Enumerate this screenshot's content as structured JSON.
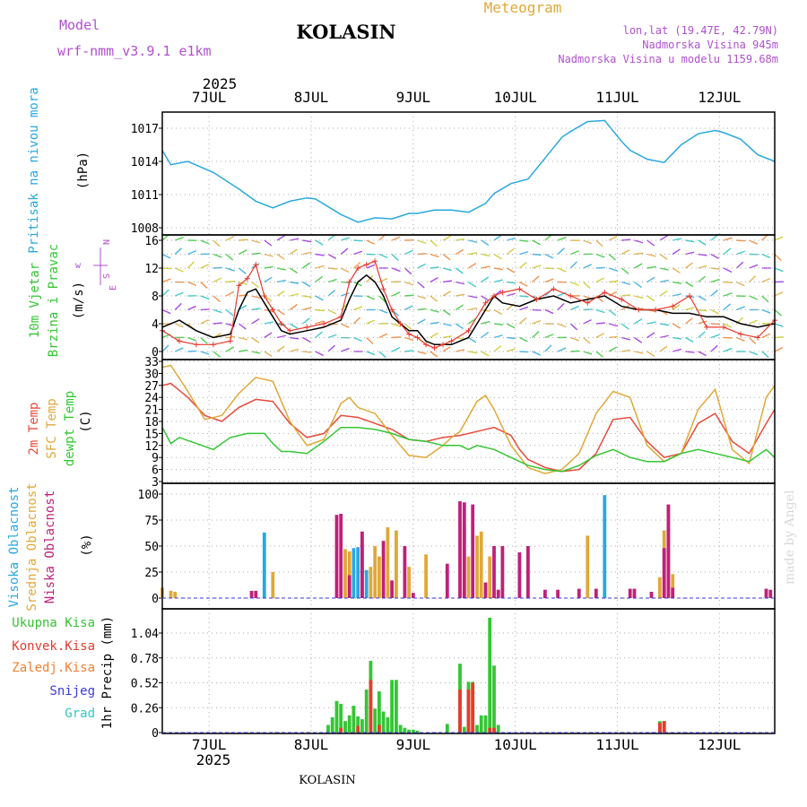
{
  "header": {
    "model_label": "Model",
    "model_name": "wrf-nmm_v3.9.1  e1km",
    "station": "KOLASIN",
    "title": "Meteogram",
    "coords": "lon,lat (19.47E, 42.79N)",
    "elev_station": "Nadmorska Visina 945m",
    "elev_model": "Nadmorska Visina u modelu 1159.68m",
    "year": "2025",
    "watermark": "made by Angel",
    "footer_station": "KOLASIN"
  },
  "colors": {
    "pressure": "#29a8e0",
    "wind_speed": "#000000",
    "wind_gust": "#e83a2e",
    "temp2m": "#e84a3a",
    "sfc_temp": "#e0a838",
    "dewpt": "#33c633",
    "cloud_high": "#29a8e0",
    "cloud_mid": "#e0a838",
    "cloud_low": "#c0207a",
    "precip_total": "#33c633",
    "precip_conv": "#e83a2e",
    "precip_frz": "#f08030",
    "precip_snow": "#3a3ae0",
    "precip_hail": "#33c6c6",
    "title": "#e0a838",
    "info": "#b050d0"
  },
  "chart_data": {
    "time_axis": {
      "start": "2025-07-06T13:00",
      "end": "2025-07-12T13:00",
      "step_hours": 1,
      "top_labels": [
        "7JUL",
        "8JUL",
        "9JUL",
        "10JUL",
        "11JUL",
        "12JUL"
      ],
      "bottom_labels": [
        "7JUL",
        "8JUL",
        "9JUL",
        "10JUL",
        "11JUL",
        "12JUL"
      ],
      "year": "2025"
    },
    "panels": [
      {
        "id": "pressure",
        "type": "line",
        "ylabel": "Pritisak na nivou mora",
        "unit": "(hPa)",
        "ylim": [
          1008,
          1018
        ],
        "yticks": [
          1008,
          1011,
          1014,
          1017
        ],
        "series": [
          {
            "key": "pressure",
            "color_key": "pressure",
            "x_hours": [
              0,
              2,
              6,
              12,
              18,
              22,
              26,
              30,
              34,
              36,
              42,
              46,
              50,
              54,
              58,
              60,
              64,
              68,
              72,
              76,
              78,
              82,
              86,
              90,
              94,
              96,
              100,
              104,
              108,
              110,
              114,
              118,
              122,
              126,
              130,
              132,
              136,
              140,
              144
            ],
            "values": [
              1015.0,
              1013.7,
              1014.0,
              1013.0,
              1011.5,
              1010.4,
              1009.8,
              1010.4,
              1010.7,
              1010.6,
              1009.2,
              1008.5,
              1008.9,
              1008.8,
              1009.3,
              1009.3,
              1009.6,
              1009.6,
              1009.4,
              1010.2,
              1011.1,
              1012.0,
              1012.4,
              1014.3,
              1016.2,
              1016.7,
              1017.6,
              1017.7,
              1015.8,
              1015.0,
              1014.2,
              1013.9,
              1015.5,
              1016.5,
              1016.8,
              1016.6,
              1016.0,
              1014.6,
              1014.0
            ]
          }
        ]
      },
      {
        "id": "wind",
        "type": "line",
        "ylabel_top": "10m Vjetar",
        "ylabel_bottom": "Brzina i Pravac",
        "unit": "(m/s)",
        "compass_labels": [
          "w",
          "N",
          "S",
          "E"
        ],
        "ylim": [
          0,
          17
        ],
        "yticks": [
          0,
          4,
          8,
          12,
          16
        ],
        "extra_yticks": [
          2,
          6,
          10,
          14
        ],
        "series": [
          {
            "key": "speed",
            "color_key": "wind_speed",
            "x_hours": [
              0,
              4,
              8,
              12,
              16,
              18,
              20,
              22,
              24,
              26,
              28,
              30,
              34,
              38,
              42,
              44,
              46,
              48,
              50,
              52,
              54,
              56,
              58,
              60,
              62,
              64,
              66,
              68,
              72,
              76,
              78,
              80,
              84,
              88,
              92,
              96,
              100,
              104,
              108,
              112,
              116,
              120,
              124,
              128,
              132,
              136,
              140,
              144
            ],
            "values": [
              3.5,
              4.5,
              3.0,
              2.0,
              2.5,
              6.0,
              8.5,
              9.0,
              7.0,
              5.0,
              3.0,
              2.5,
              3.0,
              3.5,
              4.5,
              7.5,
              10.0,
              11.0,
              10.0,
              8.0,
              5.0,
              4.0,
              3.0,
              3.0,
              1.5,
              1.0,
              1.0,
              1.0,
              2.0,
              6.0,
              8.0,
              7.0,
              6.5,
              7.5,
              8.0,
              7.0,
              7.5,
              8.0,
              6.5,
              6.0,
              6.0,
              5.5,
              5.5,
              5.0,
              5.0,
              4.0,
              3.5,
              4.0
            ]
          },
          {
            "key": "gust",
            "color_key": "wind_gust",
            "x_hours": [
              0,
              4,
              8,
              12,
              16,
              18,
              20,
              22,
              24,
              26,
              28,
              30,
              34,
              38,
              42,
              44,
              46,
              48,
              50,
              52,
              54,
              56,
              58,
              60,
              62,
              64,
              66,
              68,
              72,
              76,
              78,
              80,
              84,
              88,
              92,
              96,
              100,
              104,
              108,
              112,
              116,
              120,
              124,
              128,
              132,
              136,
              140,
              144
            ],
            "values": [
              3.0,
              1.5,
              1.0,
              1.0,
              1.5,
              9.5,
              10.5,
              12.5,
              8.0,
              6.0,
              4.0,
              3.0,
              3.5,
              4.0,
              5.0,
              10.0,
              12.0,
              12.5,
              13.0,
              9.0,
              6.0,
              4.0,
              2.5,
              2.0,
              1.0,
              0.5,
              1.0,
              1.5,
              3.0,
              7.0,
              8.0,
              8.5,
              9.0,
              7.5,
              9.0,
              8.0,
              7.0,
              8.5,
              7.5,
              6.0,
              6.0,
              6.5,
              8.0,
              3.5,
              3.5,
              2.5,
              2.0,
              4.5
            ]
          }
        ]
      },
      {
        "id": "temperature",
        "type": "line",
        "ylabels": [
          "2m Temp",
          "SFC Temp",
          "dewpt Temp"
        ],
        "unit": "(C)",
        "ylim": [
          3,
          33
        ],
        "yticks": [
          3,
          6,
          9,
          12,
          15,
          18,
          21,
          24,
          27,
          30,
          33
        ],
        "series": [
          {
            "key": "temp2m",
            "color_key": "temp2m",
            "x_hours": [
              0,
              2,
              6,
              10,
              14,
              18,
              22,
              26,
              30,
              34,
              38,
              42,
              46,
              50,
              54,
              58,
              62,
              66,
              70,
              74,
              78,
              82,
              84,
              86,
              90,
              94,
              98,
              102,
              106,
              110,
              114,
              118,
              122,
              126,
              130,
              134,
              138,
              142,
              144
            ],
            "values": [
              27.0,
              27.5,
              24.0,
              19.5,
              18.0,
              21.5,
              23.5,
              23.0,
              17.5,
              14.0,
              15.0,
              19.5,
              19.0,
              17.5,
              16.0,
              13.5,
              13.0,
              14.0,
              14.5,
              15.5,
              16.5,
              14.5,
              11.0,
              8.5,
              6.5,
              5.5,
              6.0,
              10.0,
              18.5,
              19.0,
              13.0,
              9.0,
              10.0,
              17.5,
              20.0,
              13.0,
              10.0,
              17.5,
              21.0
            ]
          },
          {
            "key": "sfc",
            "color_key": "sfc_temp",
            "x_hours": [
              0,
              2,
              6,
              10,
              14,
              18,
              22,
              26,
              30,
              34,
              38,
              42,
              44,
              46,
              50,
              54,
              58,
              62,
              66,
              68,
              70,
              74,
              76,
              78,
              82,
              86,
              90,
              94,
              98,
              102,
              106,
              110,
              114,
              118,
              122,
              126,
              130,
              134,
              138,
              142,
              144
            ],
            "values": [
              31.5,
              32.0,
              25.5,
              18.5,
              19.5,
              25.0,
              29.0,
              28.0,
              18.0,
              12.0,
              13.5,
              22.5,
              24.0,
              21.5,
              20.0,
              14.5,
              9.5,
              9.0,
              12.0,
              14.0,
              15.5,
              23.0,
              24.5,
              21.0,
              12.0,
              6.5,
              5.0,
              6.0,
              10.0,
              20.0,
              25.5,
              24.0,
              12.0,
              8.0,
              10.0,
              21.0,
              26.0,
              11.0,
              7.5,
              24.0,
              27.0
            ]
          },
          {
            "key": "dewpt",
            "color_key": "dewpt",
            "x_hours": [
              0,
              2,
              4,
              8,
              12,
              16,
              20,
              24,
              26,
              28,
              30,
              34,
              38,
              42,
              46,
              50,
              54,
              58,
              62,
              66,
              70,
              72,
              74,
              78,
              82,
              86,
              90,
              94,
              98,
              102,
              106,
              110,
              114,
              118,
              122,
              126,
              130,
              134,
              138,
              142,
              144
            ],
            "values": [
              16.5,
              12.5,
              14.0,
              12.5,
              11.0,
              14.0,
              15.0,
              15.0,
              12.5,
              10.5,
              10.5,
              10.0,
              13.0,
              16.5,
              16.5,
              16.0,
              15.0,
              13.5,
              13.0,
              12.0,
              12.0,
              11.0,
              12.0,
              11.0,
              9.0,
              7.0,
              6.0,
              5.5,
              7.0,
              9.5,
              11.0,
              9.0,
              8.0,
              8.0,
              10.0,
              11.0,
              10.0,
              9.0,
              8.0,
              11.0,
              9.0
            ]
          }
        ]
      },
      {
        "id": "clouds",
        "type": "bar",
        "ylabels": [
          "Visoka Oblacnost",
          "Srednja Oblacnost",
          "Niska Oblacnost"
        ],
        "unit": "(%)",
        "ylim": [
          0,
          100
        ],
        "yticks": [
          0,
          25,
          50,
          75,
          100
        ],
        "series": [
          {
            "key": "high",
            "color_key": "cloud_high",
            "x_hours": [
              24,
              45,
              46,
              47,
              48,
              104
            ],
            "values": [
              63,
              48,
              49,
              48,
              27,
              99
            ]
          },
          {
            "key": "mid",
            "color_key": "cloud_mid",
            "x_hours": [
              0,
              2,
              3,
              26,
              43,
              44,
              49,
              50,
              51,
              53,
              55,
              58,
              62,
              71,
              72,
              74,
              75,
              77,
              100,
              117,
              118,
              119,
              120
            ],
            "values": [
              10,
              7,
              6,
              25,
              47,
              45,
              30,
              50,
              40,
              68,
              65,
              30,
              42,
              70,
              40,
              60,
              64,
              40,
              60,
              20,
              65,
              83,
              23
            ]
          },
          {
            "key": "low",
            "color_key": "cloud_low",
            "x_hours": [
              21,
              22,
              41,
              42,
              44,
              47,
              52,
              54,
              57,
              59,
              67,
              70,
              71,
              73,
              76,
              78,
              79,
              80,
              84,
              86,
              90,
              93,
              98,
              102,
              110,
              111,
              115,
              118,
              119,
              120,
              142,
              143
            ],
            "values": [
              7,
              7,
              80,
              81,
              22,
              64,
              55,
              17,
              50,
              5,
              33,
              93,
              92,
              90,
              15,
              50,
              8,
              50,
              44,
              50,
              8,
              8,
              9,
              9,
              9,
              9,
              6,
              48,
              90,
              10,
              9,
              8
            ]
          }
        ]
      },
      {
        "id": "precip",
        "type": "bar",
        "ylabels": [
          "Ukupna Kisa",
          "Konvek.Kisa",
          "Zaledj.Kisa",
          "Snijeg",
          "Grad"
        ],
        "unit": "1hr Precip (mm)",
        "ylim": [
          0,
          1.3
        ],
        "yticks": [
          0,
          0.26,
          0.52,
          0.78,
          1.04
        ],
        "series": [
          {
            "key": "total",
            "color_key": "precip_total",
            "x_hours": [
              39,
              40,
              41,
              42,
              43,
              44,
              45,
              46,
              47,
              48,
              49,
              50,
              51,
              52,
              53,
              54,
              55,
              56,
              57,
              58,
              59,
              60,
              67,
              70,
              71,
              72,
              73,
              74,
              75,
              76,
              77,
              78,
              79,
              117,
              118
            ],
            "values": [
              0.08,
              0.16,
              0.33,
              0.3,
              0.12,
              0.18,
              0.28,
              0.17,
              0.14,
              0.45,
              0.75,
              0.25,
              0.43,
              0.22,
              0.16,
              0.55,
              0.55,
              0.08,
              0.05,
              0.03,
              0.03,
              0.02,
              0.09,
              0.72,
              0.06,
              0.53,
              0.53,
              0.08,
              0.18,
              0.18,
              1.2,
              0.7,
              0.08,
              0.12,
              0.12
            ]
          },
          {
            "key": "conv",
            "color_key": "precip_conv",
            "x_hours": [
              42,
              46,
              49,
              51,
              70,
              72,
              73,
              77,
              78,
              117,
              118
            ],
            "values": [
              0.05,
              0.07,
              0.55,
              0.08,
              0.45,
              0.45,
              0.52,
              0.05,
              0.05,
              0.1,
              0.12
            ]
          }
        ]
      }
    ]
  }
}
